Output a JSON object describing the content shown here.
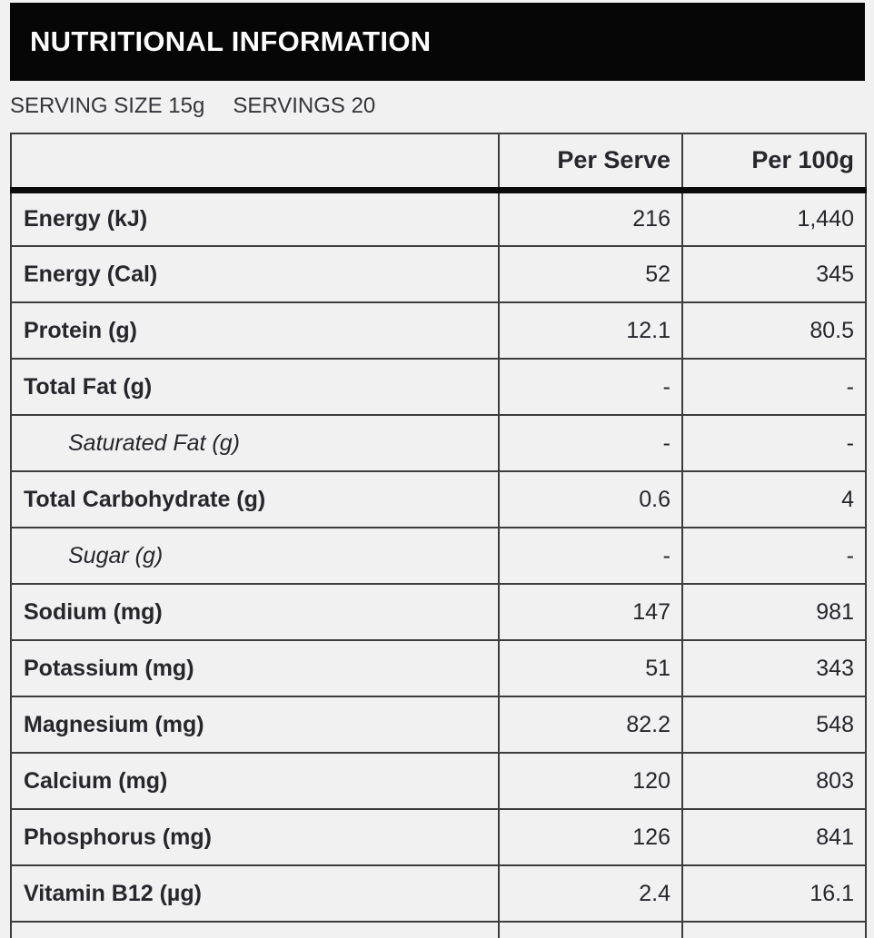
{
  "header": {
    "title": "NUTRITIONAL INFORMATION",
    "background": "#060606",
    "text_color": "#ffffff"
  },
  "serving_info": {
    "serving_size": "SERVING SIZE 15g",
    "servings": "SERVINGS 20"
  },
  "table": {
    "columns": [
      "",
      "Per Serve",
      "Per 100g"
    ],
    "rows": [
      {
        "label": "Energy (kJ)",
        "per_serve": "216",
        "per_100g": "1,440",
        "indent_italic": false
      },
      {
        "label": "Energy (Cal)",
        "per_serve": "52",
        "per_100g": "345",
        "indent_italic": false
      },
      {
        "label": "Protein (g)",
        "per_serve": "12.1",
        "per_100g": "80.5",
        "indent_italic": false
      },
      {
        "label": "Total Fat (g)",
        "per_serve": "-",
        "per_100g": "-",
        "indent_italic": false
      },
      {
        "label": "Saturated Fat (g)",
        "per_serve": "-",
        "per_100g": "-",
        "indent_italic": true
      },
      {
        "label": "Total Carbohydrate (g)",
        "per_serve": "0.6",
        "per_100g": "4",
        "indent_italic": false
      },
      {
        "label": "Sugar (g)",
        "per_serve": "-",
        "per_100g": "-",
        "indent_italic": true
      },
      {
        "label": "Sodium (mg)",
        "per_serve": "147",
        "per_100g": "981",
        "indent_italic": false
      },
      {
        "label": "Potassium (mg)",
        "per_serve": "51",
        "per_100g": "343",
        "indent_italic": false
      },
      {
        "label": "Magnesium (mg)",
        "per_serve": "82.2",
        "per_100g": "548",
        "indent_italic": false
      },
      {
        "label": "Calcium (mg)",
        "per_serve": "120",
        "per_100g": "803",
        "indent_italic": false
      },
      {
        "label": "Phosphorus (mg)",
        "per_serve": "126",
        "per_100g": "841",
        "indent_italic": false
      },
      {
        "label": "Vitamin B12 (µg)",
        "per_serve": "2.4",
        "per_100g": "16.1",
        "indent_italic": false
      },
      {
        "label": "",
        "per_serve": "",
        "per_100g": "",
        "indent_italic": false
      }
    ]
  },
  "colors": {
    "page_background": "#f1f1f1",
    "text": "#26262c",
    "grid_border": "#3d3d3d",
    "header_divider": "#0b0b0b"
  }
}
